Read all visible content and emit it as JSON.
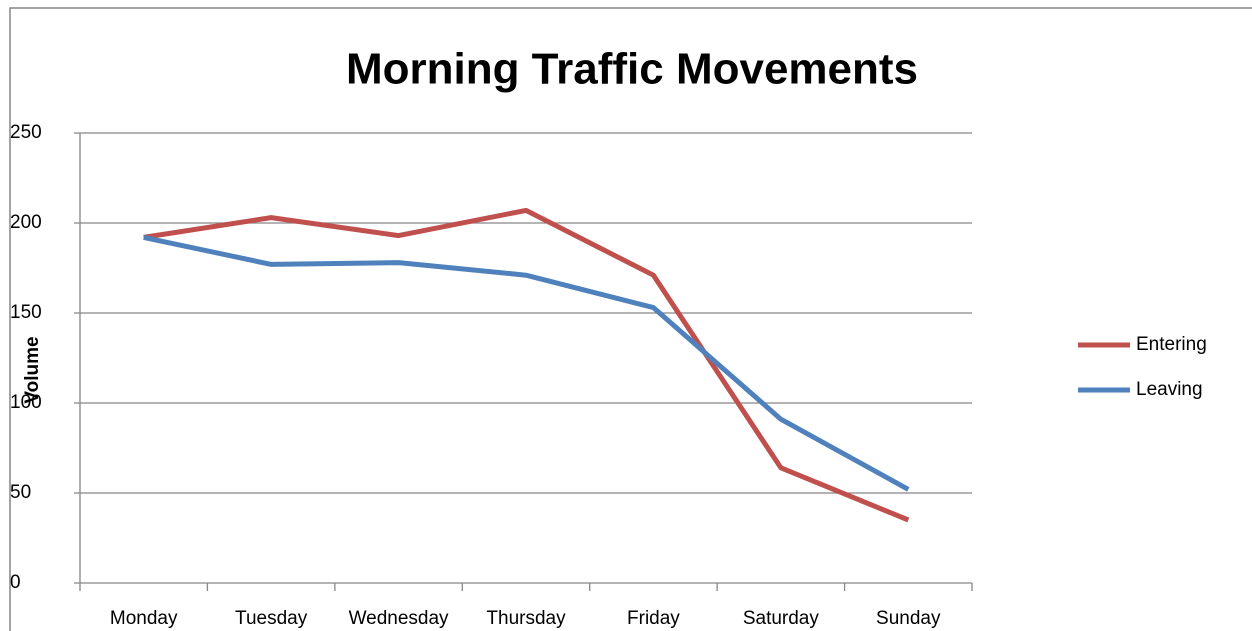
{
  "chart_data": {
    "type": "line",
    "title": "Morning Traffic Movements",
    "y_label": "Volume",
    "categories": [
      "Monday",
      "Tuesday",
      "Wednesday",
      "Thursday",
      "Friday",
      "Saturday",
      "Sunday"
    ],
    "series": [
      {
        "name": "Entering",
        "color": "#c0504d",
        "values": [
          192,
          203,
          193,
          207,
          171,
          64,
          35
        ]
      },
      {
        "name": "Leaving",
        "color": "#4f81bd",
        "values": [
          192,
          177,
          178,
          171,
          153,
          91,
          52
        ]
      }
    ],
    "ylim": [
      0,
      250
    ],
    "yticks": [
      0,
      50,
      100,
      150,
      200,
      250
    ],
    "grid": true,
    "legend": "right"
  }
}
